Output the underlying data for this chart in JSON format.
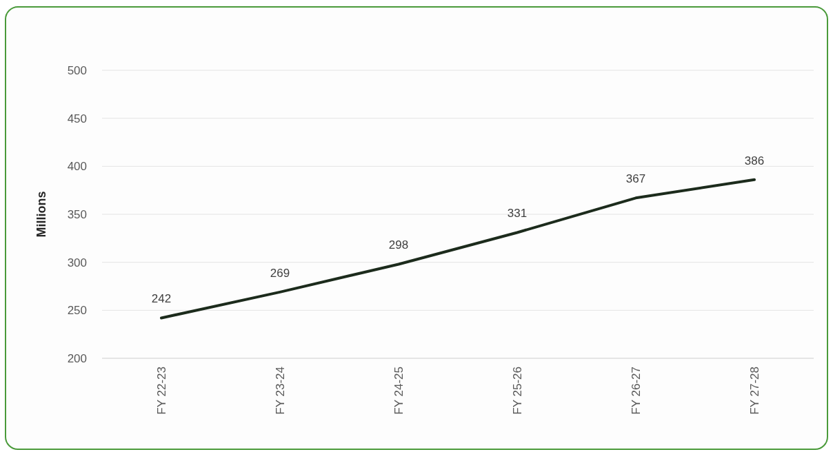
{
  "chart_data": {
    "type": "line",
    "ylabel": "Millions",
    "categories": [
      "FY 22-23",
      "FY 23-24",
      "FY 24-25",
      "FY 25-26",
      "FY 26-27",
      "FY 27-28"
    ],
    "series": [
      {
        "color": "#1c2b1c",
        "values": [
          242,
          269,
          298,
          331,
          367,
          386
        ]
      }
    ],
    "ylim": [
      200,
      500
    ],
    "yticks": [
      200,
      250,
      300,
      350,
      400,
      450,
      500
    ],
    "grid": "y",
    "data_labels": true,
    "marker": "none",
    "line_style": "solid"
  }
}
